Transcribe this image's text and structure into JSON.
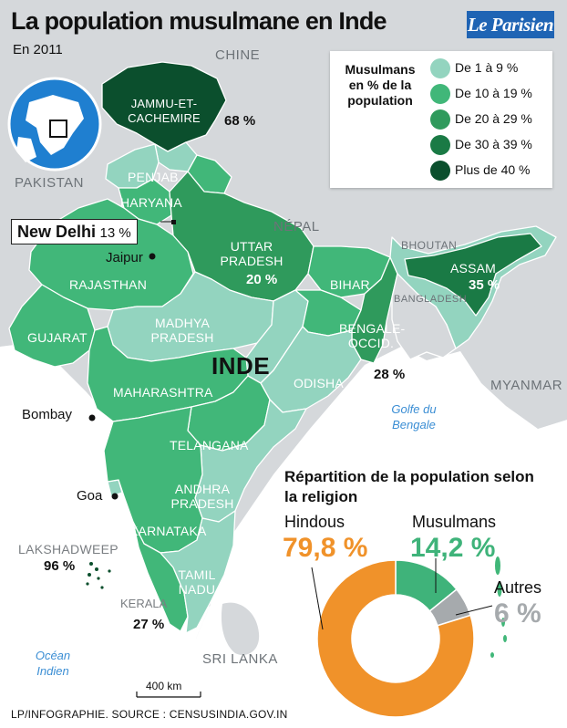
{
  "title": "La population musulmane en Inde",
  "subtitle": "En 2011",
  "logo_text": "Le Parisien",
  "legend": {
    "title": "Musulmans en % de la population",
    "items": [
      {
        "label": "De 1 à 9 %",
        "color": "#93d4bf"
      },
      {
        "label": "De 10 à 19 %",
        "color": "#41b779"
      },
      {
        "label": "De 20 à 29 %",
        "color": "#2f9a5c"
      },
      {
        "label": "De 30 à 39 %",
        "color": "#1a7a45"
      },
      {
        "label": "Plus de 40 %",
        "color": "#0b4f2d"
      }
    ]
  },
  "countries": {
    "china": "CHINE",
    "pakistan": "PAKISTAN",
    "nepal": "NÉPAL",
    "bhutan": "BHOUTAN",
    "bangladesh": "BANGLADESH",
    "myanmar": "MYANMAR",
    "srilanka": "SRI LANKA",
    "india": "INDE"
  },
  "states": {
    "jammu": "JAMMU-ET-CACHEMIRE",
    "jammu_pct": "68 %",
    "penjab": "PENJAB",
    "haryana": "HARYANA",
    "uttar": "UTTAR PRADESH",
    "uttar_pct": "20 %",
    "rajasthan": "RAJASTHAN",
    "gujarat": "GUJARAT",
    "madhya": "MADHYA PRADESH",
    "bihar": "BIHAR",
    "assam": "ASSAM",
    "assam_pct": "35 %",
    "bengale": "BENGALE-OCCID.",
    "bengale_pct": "28 %",
    "maharashtra": "MAHARASHTRA",
    "odisha": "ODISHA",
    "telangana": "TELANGANA",
    "andhra": "ANDHRA PRADESH",
    "karnataka": "KARNATAKA",
    "tamil": "TAMIL NADU",
    "kerala": "KERALA",
    "kerala_pct": "27 %",
    "lakshadweep": "LAKSHADWEEP",
    "lakshadweep_pct": "96 %"
  },
  "cities": {
    "delhi": "New Delhi",
    "delhi_pct": "13 %",
    "jaipur": "Jaipur",
    "bombay": "Bombay",
    "goa": "Goa"
  },
  "water": {
    "golfe": "Golfe du Bengale",
    "ocean": "Océan Indien"
  },
  "scale": "400 km",
  "religion": {
    "title": "Répartition de la population selon la religion",
    "items": [
      {
        "name": "Hindous",
        "value": "79,8 %",
        "share": 79.8,
        "color": "#f0922a"
      },
      {
        "name": "Musulmans",
        "value": "14,2 %",
        "share": 14.2,
        "color": "#3fb37a"
      },
      {
        "name": "Autres",
        "value": "6 %",
        "share": 6.0,
        "color": "#a6aaad"
      }
    ]
  },
  "footer": "LP/INFOGRAPHIE.   SOURCE : CENSUSINDIA.GOV.IN"
}
